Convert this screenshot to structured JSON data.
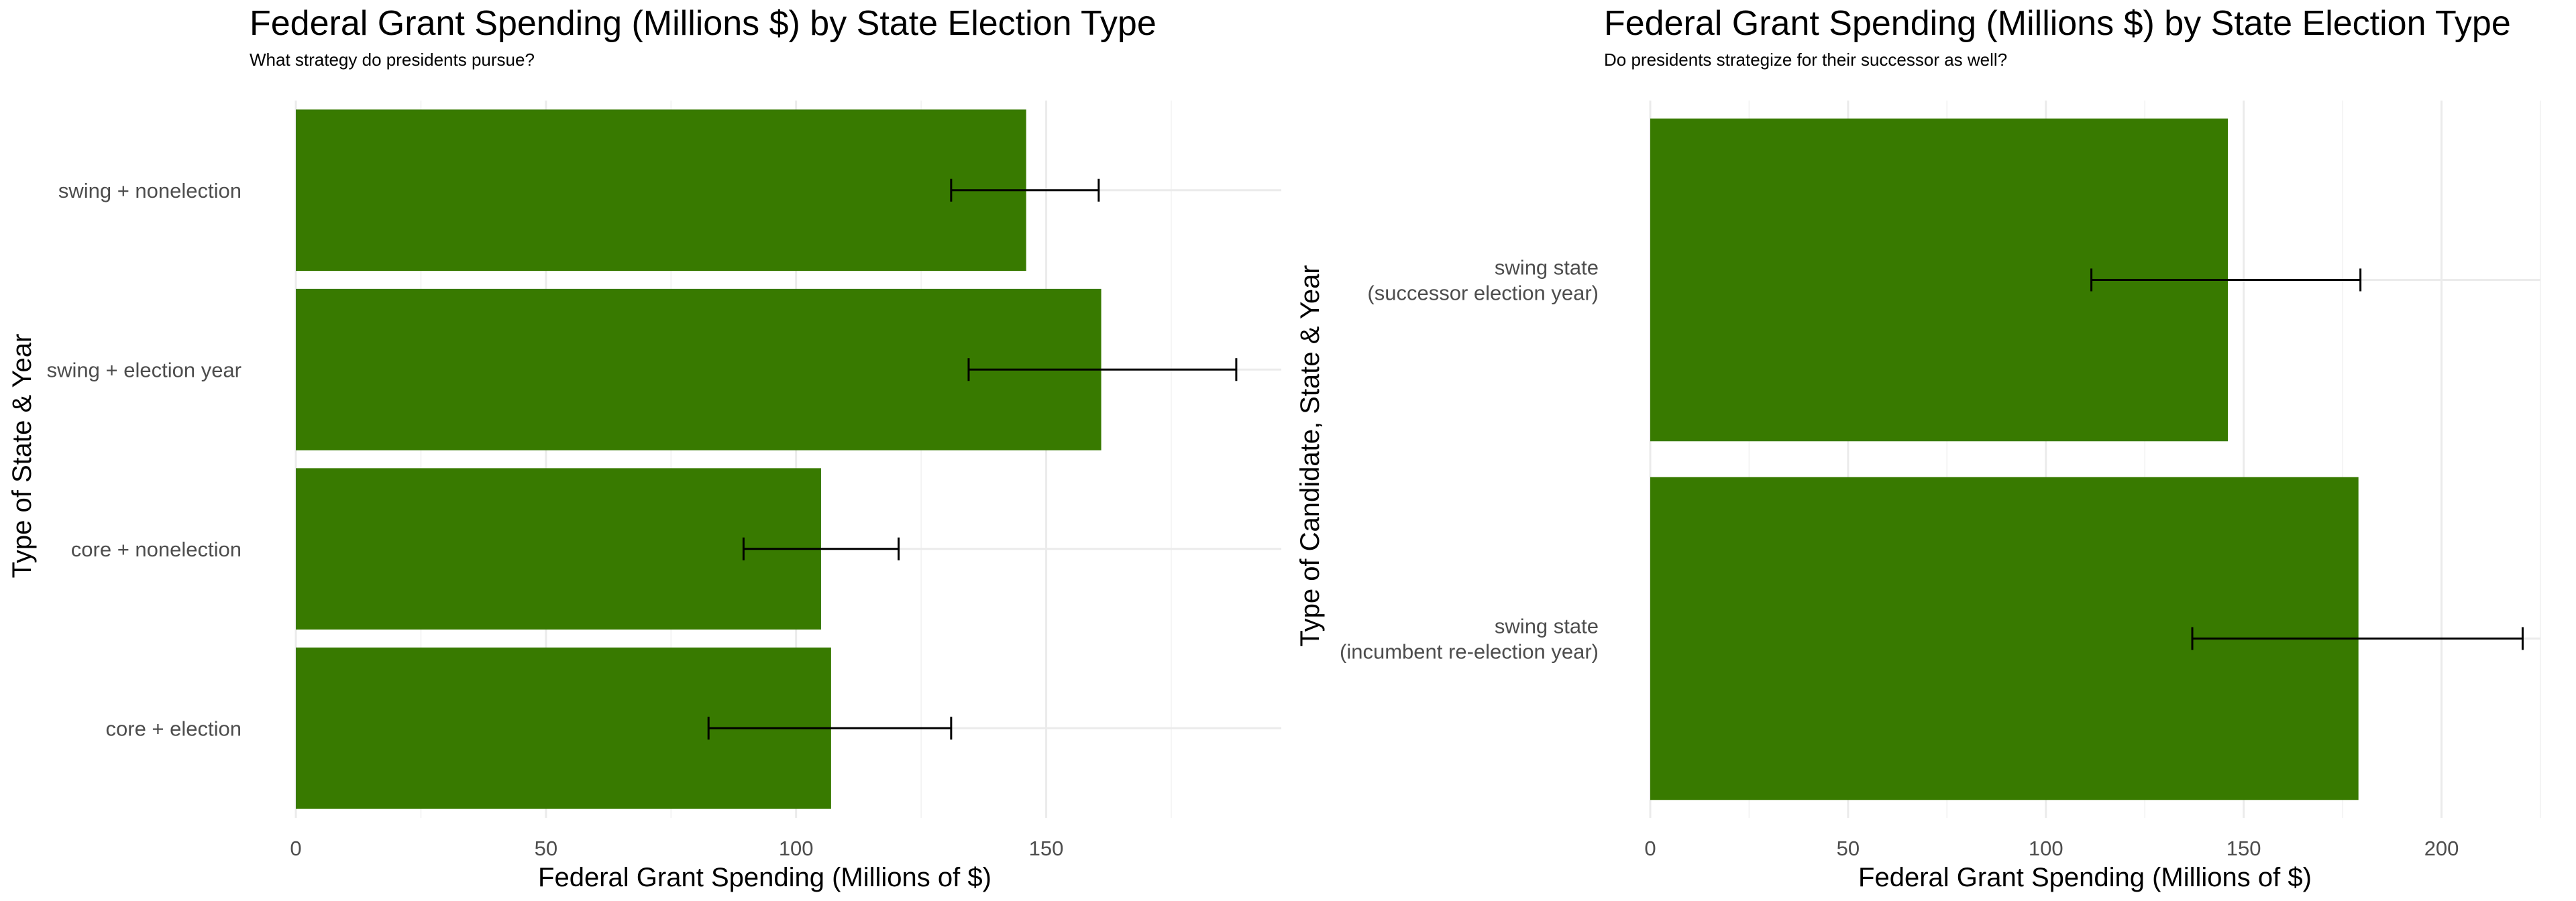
{
  "chart_data": [
    {
      "type": "bar",
      "orientation": "horizontal",
      "title": "Federal Grant Spending (Millions $) by State Election Type",
      "subtitle": "What strategy do presidents pursue?",
      "xlabel": "Federal Grant Spending (Millions of $)",
      "ylabel": "Type of State & Year",
      "categories": [
        "swing + nonelection",
        "swing + election year",
        "core + nonelection",
        "core + election"
      ],
      "values": [
        146,
        161,
        105,
        107
      ],
      "error_low": [
        131,
        134.5,
        89.5,
        82.5
      ],
      "error_high": [
        160.5,
        188,
        120.5,
        131
      ],
      "xlim": [
        0,
        197
      ],
      "xticks": [
        0,
        50,
        100,
        150
      ],
      "bar_color": "#387a00",
      "grid": true
    },
    {
      "type": "bar",
      "orientation": "horizontal",
      "title": "Federal Grant Spending (Millions $) by State Election Type",
      "subtitle": "Do presidents strategize for their successor as well?",
      "xlabel": "Federal Grant Spending (Millions of $)",
      "ylabel": "Type of Candidate, State & Year",
      "categories": [
        "swing state\n(successor election year)",
        "swing state\n(incumbent re-election year)"
      ],
      "values": [
        146,
        179
      ],
      "error_low": [
        111.5,
        137
      ],
      "error_high": [
        179.5,
        220.5
      ],
      "xlim": [
        0,
        225
      ],
      "xticks": [
        0,
        50,
        100,
        150,
        200
      ],
      "bar_color": "#387a00",
      "grid": true
    }
  ]
}
